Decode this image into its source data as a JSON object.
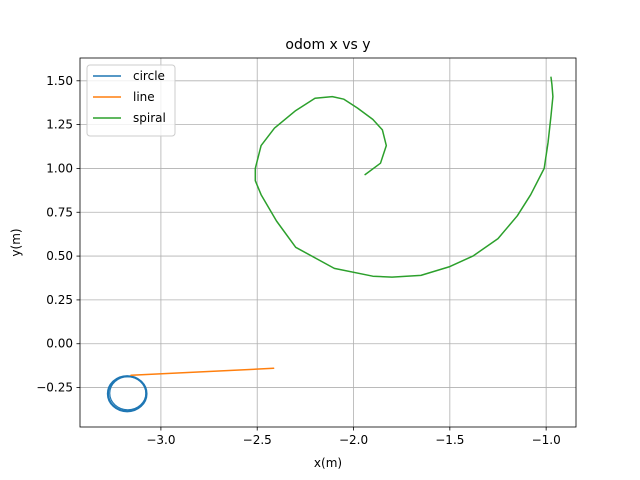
{
  "chart_data": {
    "type": "line",
    "title": "odom x vs y",
    "xlabel": "x(m)",
    "ylabel": "y(m)",
    "xlim": [
      -3.42,
      -0.845
    ],
    "ylim": [
      -0.475,
      1.63
    ],
    "xticks": [
      -3.0,
      -2.5,
      -2.0,
      -1.5,
      -1.0
    ],
    "xtick_labels": [
      "−3.0",
      "−2.5",
      "−2.0",
      "−1.5",
      "−1.0"
    ],
    "yticks": [
      -0.25,
      0.0,
      0.25,
      0.5,
      0.75,
      1.0,
      1.25,
      1.5
    ],
    "ytick_labels": [
      "−0.25",
      "0.00",
      "0.25",
      "0.50",
      "0.75",
      "1.00",
      "1.25",
      "1.50"
    ],
    "grid": true,
    "legend_position": "top-left",
    "series": [
      {
        "name": "circle",
        "color": "#1f77b4",
        "shape": "circle",
        "center": [
          -3.175,
          -0.285
        ],
        "radius_x": 0.1,
        "radius_y": 0.1
      },
      {
        "name": "line",
        "color": "#ff7f0e",
        "x": [
          -3.155,
          -2.415
        ],
        "y": [
          -0.18,
          -0.14
        ]
      },
      {
        "name": "spiral",
        "color": "#2ca02c",
        "x": [
          -1.94,
          -1.86,
          -1.83,
          -1.85,
          -1.9,
          -1.98,
          -2.05,
          -2.11,
          -2.2,
          -2.3,
          -2.41,
          -2.48,
          -2.51,
          -2.51,
          -2.48,
          -2.4,
          -2.3,
          -2.1,
          -1.9,
          -1.8,
          -1.65,
          -1.5,
          -1.38,
          -1.25,
          -1.15,
          -1.08,
          -1.01,
          -0.99,
          -0.975,
          -0.965,
          -0.97,
          -0.975
        ],
        "y": [
          0.965,
          1.03,
          1.13,
          1.22,
          1.28,
          1.345,
          1.395,
          1.41,
          1.4,
          1.33,
          1.23,
          1.13,
          1.0,
          0.93,
          0.85,
          0.7,
          0.55,
          0.43,
          0.385,
          0.38,
          0.39,
          0.44,
          0.5,
          0.6,
          0.73,
          0.85,
          1.0,
          1.15,
          1.3,
          1.41,
          1.48,
          1.52
        ]
      }
    ]
  }
}
